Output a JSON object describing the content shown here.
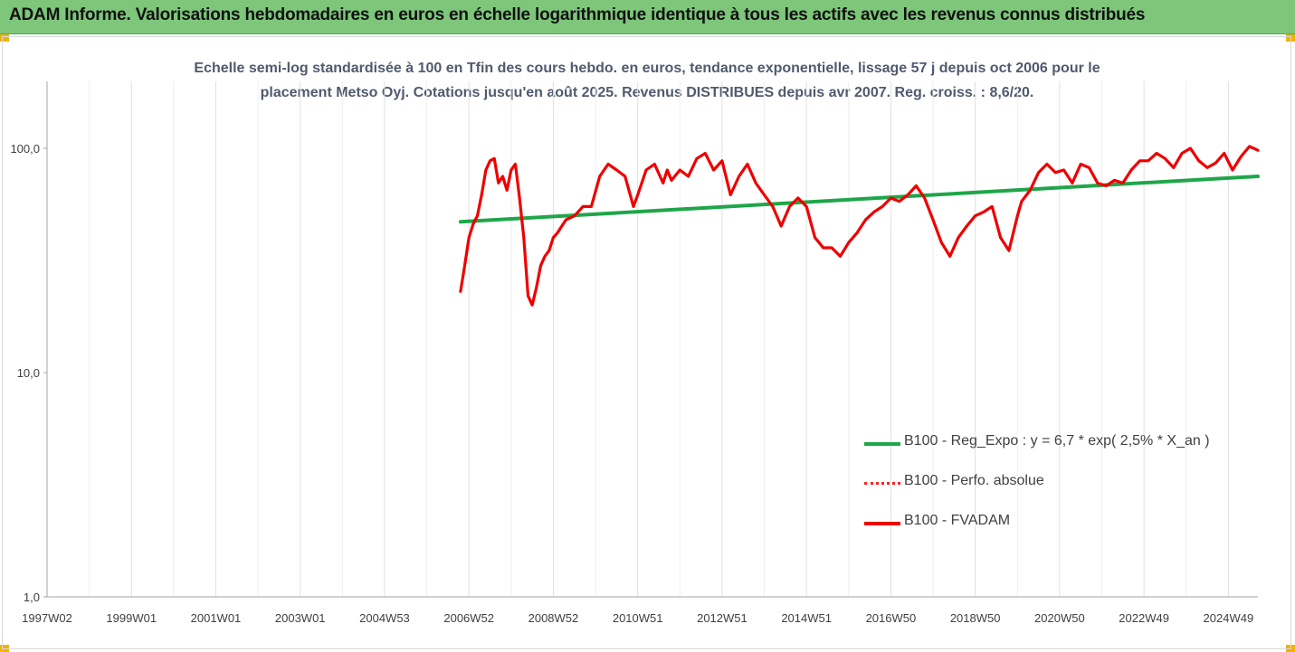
{
  "banner": {
    "title": "ADAM Informe. Valorisations hebdomadaires en euros en échelle logarithmique identique à tous les actifs avec les revenus connus distribués"
  },
  "chart_data": {
    "type": "line",
    "title_line1": "Echelle semi-log standardisée à 100 en Tfin des cours hebdo. en euros, tendance exponentielle, lissage 57 j depuis oct 2006 pour le",
    "title_line2": "placement Metso Oyj. Cotations jusqu'en août 2025. Revenus DISTRIBUES depuis avr 2007. Reg. croiss. : 8,6/20.",
    "y_scale": "log",
    "ylim": [
      1,
      200
    ],
    "y_ticks": [
      {
        "value": 1,
        "label": "1,0"
      },
      {
        "value": 10,
        "label": "10,0"
      },
      {
        "value": 100,
        "label": "100,0"
      }
    ],
    "xlim": [
      1997.0,
      2025.7
    ],
    "x_ticks": [
      {
        "value": 1997.0,
        "label": "1997W02"
      },
      {
        "value": 1999.0,
        "label": "1999W01"
      },
      {
        "value": 2001.0,
        "label": "2001W01"
      },
      {
        "value": 2003.0,
        "label": "2003W01"
      },
      {
        "value": 2005.0,
        "label": "2004W53"
      },
      {
        "value": 2007.0,
        "label": "2006W52"
      },
      {
        "value": 2009.0,
        "label": "2008W52"
      },
      {
        "value": 2011.0,
        "label": "2010W51"
      },
      {
        "value": 2013.0,
        "label": "2012W51"
      },
      {
        "value": 2015.0,
        "label": "2014W51"
      },
      {
        "value": 2017.0,
        "label": "2016W50"
      },
      {
        "value": 2019.0,
        "label": "2018W50"
      },
      {
        "value": 2021.0,
        "label": "2020W50"
      },
      {
        "value": 2023.0,
        "label": "2022W49"
      },
      {
        "value": 2025.0,
        "label": "2024W49"
      }
    ],
    "grid": "vertical",
    "legend_position": "bottom-right",
    "series": [
      {
        "name": "B100 - Reg_Expo : y = 6,7 * exp( 2,5% *  X_an )",
        "color": "#1fa64a",
        "style": "solid",
        "x": [
          2006.8,
          2025.7
        ],
        "y": [
          47,
          75
        ]
      },
      {
        "name": "B100 - Perfo. absolue",
        "color": "#ff2020",
        "style": "dotted",
        "x": [],
        "y": []
      },
      {
        "name": "B100 - FVADAM",
        "color": "#ee0000",
        "style": "solid",
        "x": [
          2006.8,
          2006.9,
          2007.0,
          2007.1,
          2007.2,
          2007.3,
          2007.4,
          2007.5,
          2007.6,
          2007.7,
          2007.8,
          2007.9,
          2008.0,
          2008.1,
          2008.2,
          2008.3,
          2008.4,
          2008.5,
          2008.6,
          2008.7,
          2008.8,
          2008.9,
          2009.0,
          2009.1,
          2009.2,
          2009.3,
          2009.5,
          2009.7,
          2009.9,
          2010.1,
          2010.3,
          2010.5,
          2010.7,
          2010.9,
          2011.0,
          2011.2,
          2011.4,
          2011.6,
          2011.7,
          2011.8,
          2012.0,
          2012.2,
          2012.4,
          2012.6,
          2012.8,
          2013.0,
          2013.2,
          2013.4,
          2013.6,
          2013.8,
          2014.0,
          2014.2,
          2014.4,
          2014.6,
          2014.8,
          2015.0,
          2015.2,
          2015.4,
          2015.6,
          2015.8,
          2016.0,
          2016.2,
          2016.4,
          2016.6,
          2016.8,
          2017.0,
          2017.2,
          2017.4,
          2017.6,
          2017.8,
          2018.0,
          2018.2,
          2018.4,
          2018.6,
          2018.8,
          2019.0,
          2019.2,
          2019.4,
          2019.6,
          2019.8,
          2020.0,
          2020.1,
          2020.3,
          2020.5,
          2020.7,
          2020.9,
          2021.1,
          2021.3,
          2021.5,
          2021.7,
          2021.9,
          2022.1,
          2022.3,
          2022.5,
          2022.7,
          2022.9,
          2023.1,
          2023.3,
          2023.5,
          2023.7,
          2023.9,
          2024.1,
          2024.3,
          2024.5,
          2024.7,
          2024.9,
          2025.1,
          2025.3,
          2025.5,
          2025.6,
          2025.7
        ],
        "y": [
          23,
          30,
          40,
          46,
          50,
          62,
          80,
          88,
          90,
          70,
          75,
          65,
          80,
          85,
          60,
          40,
          22,
          20,
          24,
          30,
          33,
          35,
          40,
          42,
          45,
          48,
          50,
          55,
          55,
          75,
          85,
          80,
          75,
          55,
          62,
          80,
          85,
          70,
          80,
          72,
          80,
          75,
          90,
          95,
          80,
          88,
          62,
          75,
          85,
          70,
          62,
          55,
          45,
          55,
          60,
          55,
          40,
          36,
          36,
          33,
          38,
          42,
          48,
          52,
          55,
          60,
          58,
          62,
          68,
          60,
          48,
          38,
          33,
          40,
          45,
          50,
          52,
          55,
          40,
          35,
          50,
          58,
          65,
          78,
          85,
          78,
          80,
          70,
          85,
          82,
          70,
          68,
          72,
          70,
          80,
          88,
          88,
          95,
          90,
          82,
          95,
          100,
          88,
          82,
          86,
          95,
          80,
          92,
          102,
          100,
          98
        ]
      }
    ]
  }
}
